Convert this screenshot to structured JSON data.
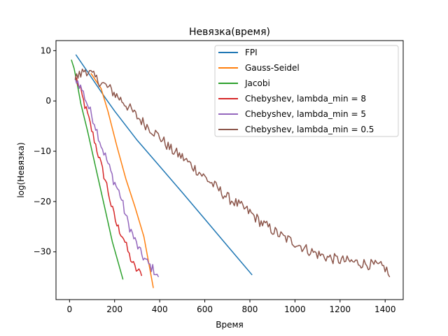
{
  "chart_data": {
    "type": "line",
    "title": "Невязка(время)",
    "xlabel": "Время",
    "ylabel": "log(Невязка)",
    "xlim": [
      -60,
      1480
    ],
    "ylim": [
      -39.5,
      12
    ],
    "xticks": [
      0,
      200,
      400,
      600,
      800,
      1000,
      1200,
      1400
    ],
    "xtick_labels": [
      "0",
      "200",
      "400",
      "600",
      "800",
      "1000",
      "1200",
      "1400"
    ],
    "yticks": [
      10,
      0,
      -10,
      -20,
      -30
    ],
    "ytick_labels": [
      "10",
      "0",
      "−10",
      "−20",
      "−30"
    ],
    "grid": false,
    "legend_position": "top-right",
    "series": [
      {
        "name": "FPI",
        "color": "#1f77b4",
        "noise": 0,
        "points": [
          [
            28,
            9.2
          ],
          [
            100,
            4.5
          ],
          [
            160,
            0.5
          ],
          [
            200,
            -2
          ],
          [
            300,
            -7.8
          ],
          [
            400,
            -13
          ],
          [
            500,
            -18.2
          ],
          [
            600,
            -23.5
          ],
          [
            700,
            -28.8
          ],
          [
            810,
            -34.6
          ]
        ]
      },
      {
        "name": "Gauss-Seidel",
        "color": "#ff7f0e",
        "noise": 0,
        "points": [
          [
            95,
            5.5
          ],
          [
            140,
            2.5
          ],
          [
            170,
            -2
          ],
          [
            210,
            -9
          ],
          [
            250,
            -15.5
          ],
          [
            290,
            -21
          ],
          [
            330,
            -27
          ],
          [
            372,
            -37.2
          ]
        ]
      },
      {
        "name": "Jacobi",
        "color": "#2ca02c",
        "noise": 0,
        "points": [
          [
            8,
            8.2
          ],
          [
            20,
            6.5
          ],
          [
            35,
            3.2
          ],
          [
            50,
            -0.5
          ],
          [
            80,
            -6
          ],
          [
            100,
            -10
          ],
          [
            130,
            -16
          ],
          [
            160,
            -22
          ],
          [
            190,
            -28
          ],
          [
            215,
            -32
          ],
          [
            237,
            -35.5
          ]
        ]
      },
      {
        "name": "Chebyshev, lambda_min = 8",
        "color": "#d62728",
        "noise": 0.9,
        "points": [
          [
            25,
            4.8
          ],
          [
            50,
            1.5
          ],
          [
            80,
            -3
          ],
          [
            110,
            -8
          ],
          [
            140,
            -13
          ],
          [
            165,
            -17
          ],
          [
            185,
            -21
          ],
          [
            210,
            -25
          ],
          [
            240,
            -27.5
          ],
          [
            265,
            -31
          ],
          [
            290,
            -33.5
          ],
          [
            320,
            -34.8
          ]
        ]
      },
      {
        "name": "Chebyshev, lambda_min = 5",
        "color": "#9467bd",
        "noise": 1.0,
        "points": [
          [
            25,
            4.5
          ],
          [
            55,
            2
          ],
          [
            80,
            -1
          ],
          [
            110,
            -4.5
          ],
          [
            140,
            -9
          ],
          [
            165,
            -12
          ],
          [
            195,
            -16
          ],
          [
            225,
            -19
          ],
          [
            255,
            -24
          ],
          [
            285,
            -27.5
          ],
          [
            315,
            -30.5
          ],
          [
            345,
            -32.5
          ],
          [
            375,
            -34
          ],
          [
            395,
            -35
          ]
        ]
      },
      {
        "name": "Chebyshev, lambda_min = 0.5",
        "color": "#8c564b",
        "noise": 1.1,
        "points": [
          [
            25,
            4.2
          ],
          [
            50,
            5
          ],
          [
            70,
            6
          ],
          [
            120,
            4
          ],
          [
            180,
            2
          ],
          [
            250,
            -1
          ],
          [
            300,
            -3.5
          ],
          [
            350,
            -5.5
          ],
          [
            400,
            -7.5
          ],
          [
            450,
            -10
          ],
          [
            500,
            -11.5
          ],
          [
            550,
            -13.5
          ],
          [
            600,
            -15.5
          ],
          [
            650,
            -17.5
          ],
          [
            700,
            -19.5
          ],
          [
            750,
            -21
          ],
          [
            800,
            -22.5
          ],
          [
            850,
            -24.5
          ],
          [
            900,
            -26
          ],
          [
            950,
            -27.5
          ],
          [
            1000,
            -28.5
          ],
          [
            1050,
            -29.8
          ],
          [
            1100,
            -30.8
          ],
          [
            1150,
            -31.5
          ],
          [
            1200,
            -32
          ],
          [
            1250,
            -32.3
          ],
          [
            1300,
            -32.6
          ],
          [
            1350,
            -33
          ],
          [
            1400,
            -33.5
          ],
          [
            1420,
            -35
          ]
        ]
      }
    ]
  }
}
